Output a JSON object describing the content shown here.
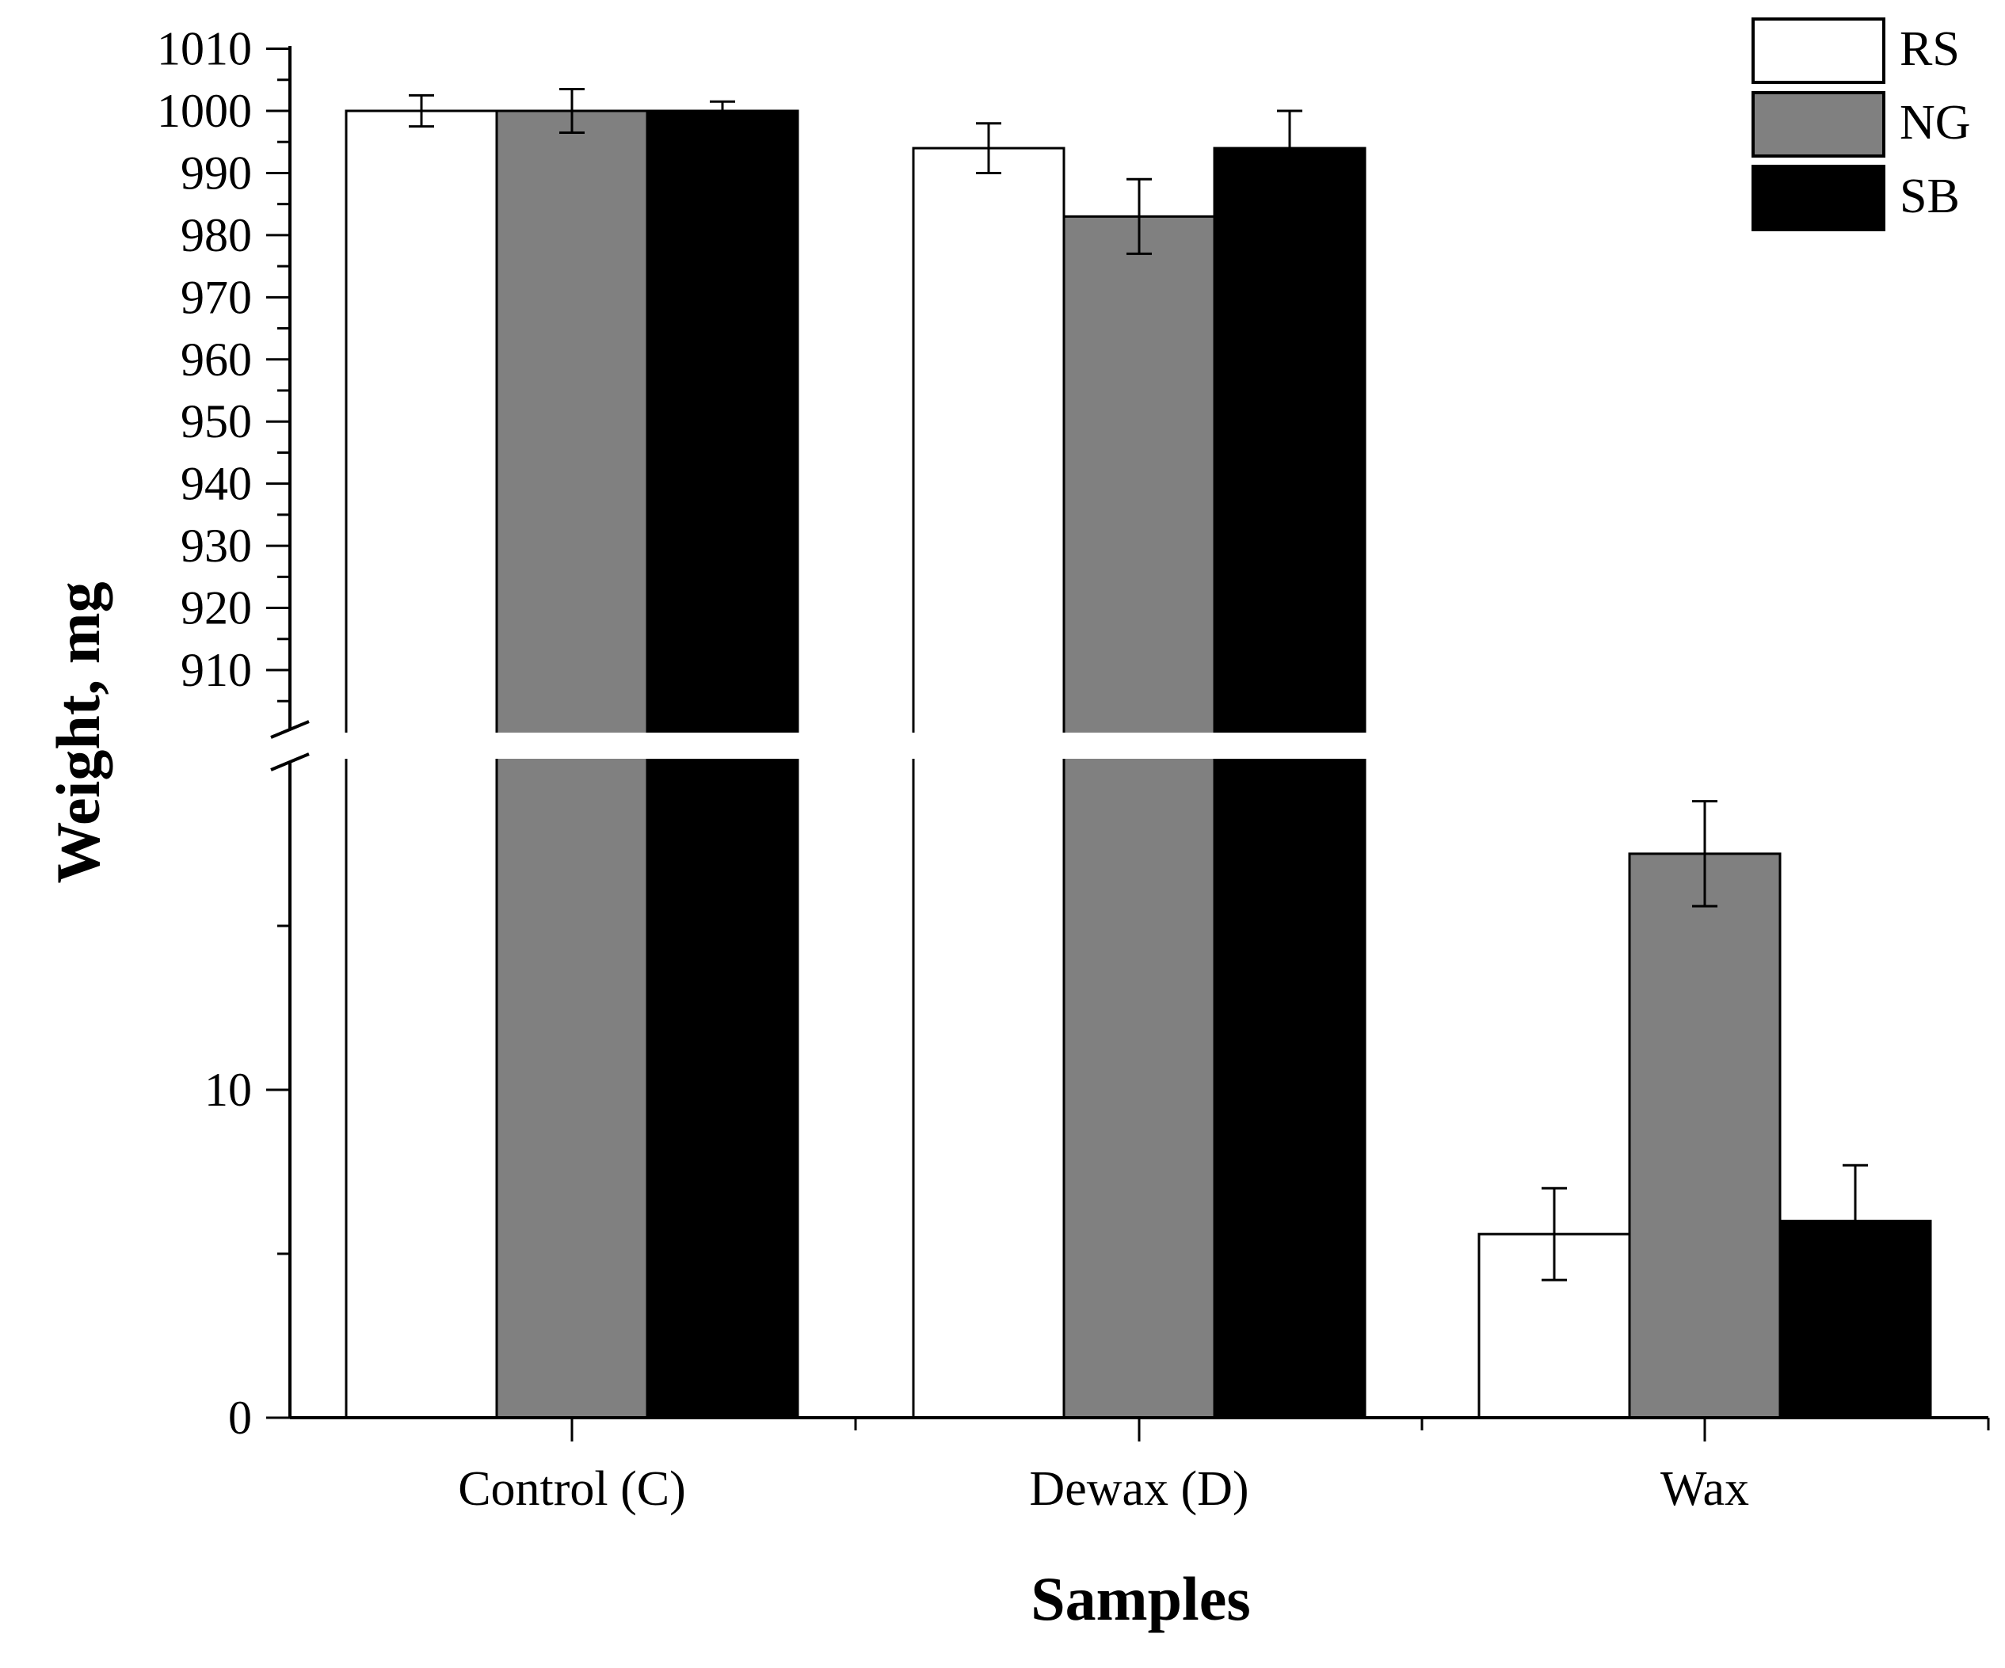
{
  "chart_data": {
    "type": "bar",
    "title": "",
    "xlabel": "Samples",
    "ylabel": "Weight, mg",
    "categories": [
      "Control (C)",
      "Dewax (D)",
      "Wax"
    ],
    "series": [
      {
        "name": "RS",
        "color": "#ffffff",
        "values": [
          1000,
          994,
          5.6
        ],
        "errors": [
          2.5,
          4,
          1.4
        ]
      },
      {
        "name": "NG",
        "color": "#808080",
        "values": [
          1000,
          983,
          17.2
        ],
        "errors": [
          3.5,
          6,
          1.6
        ]
      },
      {
        "name": "SB",
        "color": "#000000",
        "values": [
          1000,
          994,
          6.0
        ],
        "errors": [
          1.5,
          6,
          1.7
        ]
      }
    ],
    "y_axis_break": true,
    "y_lower_segment": {
      "ylim": [
        0,
        20
      ],
      "ticks": [
        0,
        10
      ]
    },
    "y_upper_segment": {
      "ylim": [
        900,
        1010
      ],
      "ticks": [
        910,
        920,
        930,
        940,
        950,
        960,
        970,
        980,
        990,
        1000,
        1010
      ]
    },
    "legend_position": "top-right",
    "grid": false
  }
}
